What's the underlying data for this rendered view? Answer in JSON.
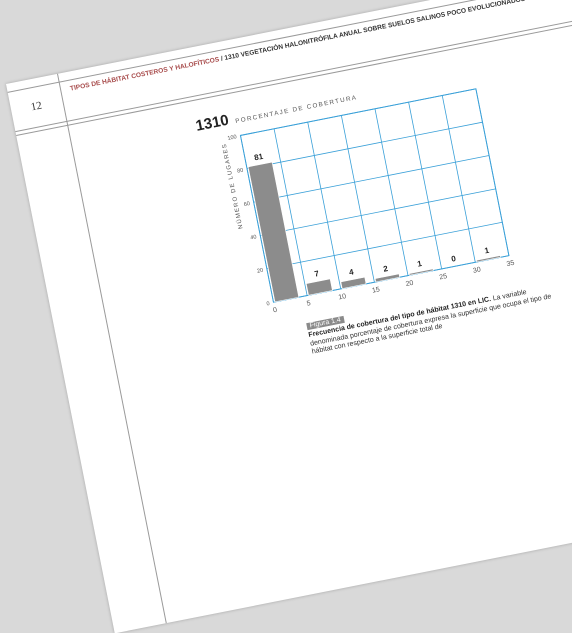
{
  "page": {
    "number": "12",
    "header_category": "TIPOS DE HÁBITAT COSTEROS Y HALOFÍTICOS",
    "header_separator": " / ",
    "header_code": "1310",
    "header_title": " VEGETACIÓN HALONITRÓFILA ANUAL SOBRE SUELOS SALINOS POCO EVOLUCIONADOS"
  },
  "chart_data": {
    "type": "bar",
    "title": "PORCENTAJE DE COBERTURA",
    "title_code": "1310",
    "ylabel": "NÚMERO DE LUGARES",
    "xlabel": "",
    "categories": [
      "0–5",
      "5–10",
      "10–15",
      "15–20",
      "20–25",
      "25–30",
      "30–35"
    ],
    "values": [
      81,
      7,
      4,
      2,
      1,
      0,
      1
    ],
    "x_ticks": [
      0,
      5,
      10,
      15,
      20,
      25,
      30,
      35
    ],
    "y_ticks": [
      0,
      20,
      40,
      60,
      80,
      100
    ],
    "xlim": [
      0,
      35
    ],
    "ylim": [
      0,
      100
    ],
    "grid": true,
    "data_labels": true,
    "colors": {
      "bar": "#8c8c8c",
      "grid": "#3aa0d8"
    }
  },
  "figure": {
    "label": "Figura 1.4",
    "caption_bold": "Frecuencia de cobertura del tipo de hábitat 1310 en LIC.",
    "caption_text": "La variable denominada porcentaje de cobertura expresa la superficie que ocupa el tipo de hábitat con respecto a la superficie total de"
  }
}
